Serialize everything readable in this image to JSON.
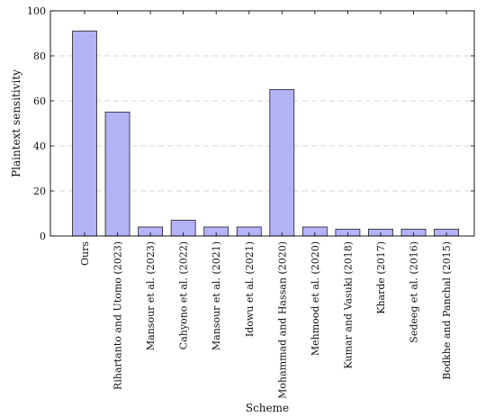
{
  "chart_data": {
    "type": "bar",
    "title": "",
    "xlabel": "Scheme",
    "ylabel": "Plaintext sensitivity",
    "categories": [
      "Ours",
      "Rihartanto and Utomo (2023)",
      "Mansour et al. (2023)",
      "Cahyono et al. (2022)",
      "Mansour et al. (2021)",
      "Idowu et al. (2021)",
      "Mohammad and Hassan (2020)",
      "Mehmood et al. (2020)",
      "Kumar and Vasuki (2018)",
      "Kharde (2017)",
      "Sedeeg et al. (2016)",
      "Bodkhe and Panchal (2015)"
    ],
    "values": [
      91,
      55,
      4,
      7,
      4,
      4,
      65,
      4,
      3,
      3,
      3,
      3
    ],
    "ylim": [
      0,
      100
    ],
    "yticks": [
      0,
      20,
      40,
      60,
      80,
      100
    ],
    "grid": true,
    "legend": "none",
    "colors": {
      "bar_fill": "#b3b3f7",
      "bar_stroke": "#1f1f1f",
      "grid": "#c8c8c8",
      "axis": "#000000"
    }
  }
}
